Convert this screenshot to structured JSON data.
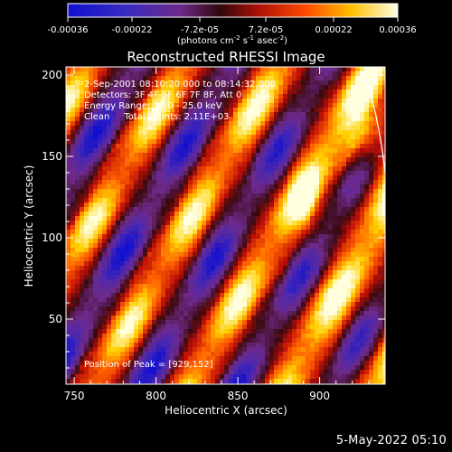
{
  "colorbar": {
    "ticks": [
      "-0.00036",
      "-0.00022",
      "-7.2e-05",
      "7.2e-05",
      "0.00022",
      "0.00036"
    ],
    "tick_values": [
      -0.00036,
      -0.00022,
      -7.2e-05,
      7.2e-05,
      0.00022,
      0.00036
    ],
    "range": [
      -0.00036,
      0.00036
    ],
    "units_prefix": "(photons cm",
    "units_exp1": "-2",
    "units_mid": " s",
    "units_exp2": "-1",
    "units_mid2": " asec",
    "units_exp3": "-2",
    "units_suffix": ")"
  },
  "chart_data": {
    "type": "heatmap",
    "title": "Reconstructed RHESSI Image",
    "xlabel": "Heliocentric X (arcsec)",
    "ylabel": "Heliocentric Y (arcsec)",
    "xlim": [
      745,
      940
    ],
    "ylim": [
      10,
      205
    ],
    "xticks": [
      750,
      800,
      850,
      900
    ],
    "yticks": [
      50,
      100,
      150,
      200
    ],
    "annotations": [
      "2-Sep-2001 08:10:20.000 to 08:14:32.000",
      "Detectors: 3F 4F 5F 6F 7F 8F, Att 0",
      "Energy Range: 12.0 - 25.0 keV",
      "Clean     Total counts: 2.11E+03"
    ],
    "peak_label": "Position of Peak = [929,152]",
    "peak": [
      929,
      152
    ],
    "colormap": [
      "#1010d0",
      "#4a28b0",
      "#6e2a8a",
      "#3a0a10",
      "#c01008",
      "#ff6000",
      "#ffd000",
      "#ffffe0"
    ]
  },
  "footer": {
    "date": "5-May-2022 05:10"
  }
}
